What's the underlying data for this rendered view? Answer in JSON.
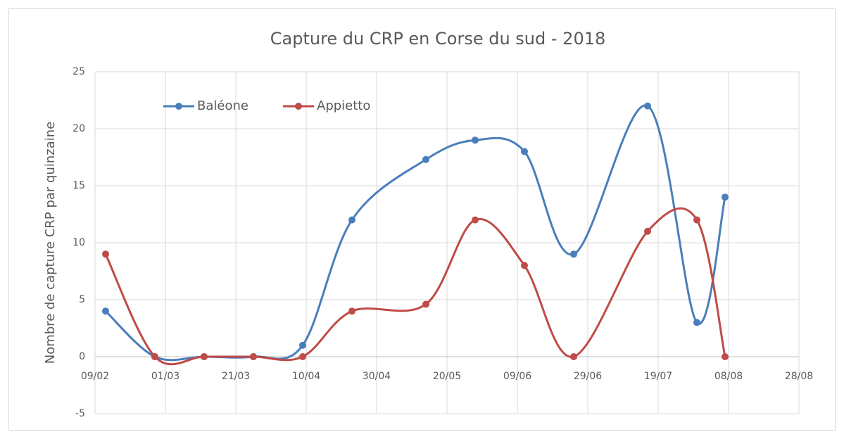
{
  "chart_data": {
    "type": "line",
    "title": "Capture du CRP en Corse du sud - 2018",
    "y_label": "Nombre de capture CRP par quinzaine",
    "x": [
      43,
      57,
      71,
      85,
      99,
      113,
      134,
      148,
      162,
      176,
      197,
      211,
      219
    ],
    "series": [
      {
        "name": "Baléone",
        "color": "#4a7ebb",
        "values": [
          4,
          0,
          0,
          0,
          1,
          12,
          17.3,
          19,
          18,
          9,
          22,
          3,
          14
        ]
      },
      {
        "name": "Appietto",
        "color": "#be4b48",
        "values": [
          9,
          0,
          0,
          0,
          0,
          4,
          4.6,
          12,
          8,
          0,
          11,
          12,
          0
        ]
      }
    ],
    "xlim": [
      40,
      240
    ],
    "xticks": [
      {
        "value": 40,
        "label": "09/02"
      },
      {
        "value": 60,
        "label": "01/03"
      },
      {
        "value": 80,
        "label": "21/03"
      },
      {
        "value": 100,
        "label": "10/04"
      },
      {
        "value": 120,
        "label": "30/04"
      },
      {
        "value": 140,
        "label": "20/05"
      },
      {
        "value": 160,
        "label": "09/06"
      },
      {
        "value": 180,
        "label": "29/06"
      },
      {
        "value": 200,
        "label": "19/07"
      },
      {
        "value": 220,
        "label": "08/08"
      },
      {
        "value": 240,
        "label": "28/08"
      }
    ],
    "ylim": [
      -5,
      25
    ],
    "yticks": [
      -5,
      0,
      5,
      10,
      15,
      20,
      25
    ],
    "grid": true,
    "smooth": true,
    "legend": "top-left"
  }
}
